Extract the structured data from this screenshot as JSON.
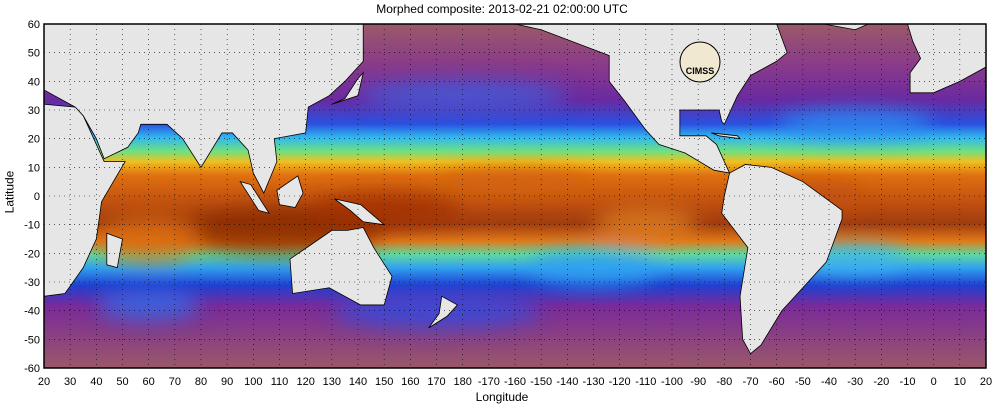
{
  "title": "Morphed composite: 2013-02-21 02:00:00 UTC",
  "xlabel": "Longitude",
  "ylabel": "Latitude",
  "x_ticks": [
    "20",
    "30",
    "40",
    "50",
    "60",
    "70",
    "80",
    "90",
    "100",
    "110",
    "120",
    "130",
    "140",
    "150",
    "160",
    "170",
    "180",
    "-170",
    "-160",
    "-150",
    "-140",
    "-130",
    "-120",
    "-110",
    "-100",
    "-90",
    "-80",
    "-70",
    "-60",
    "-50",
    "-40",
    "-30",
    "-20",
    "-10",
    "0",
    "10",
    "20"
  ],
  "y_ticks": [
    "60",
    "50",
    "40",
    "30",
    "20",
    "10",
    "0",
    "-10",
    "-20",
    "-30",
    "-40",
    "-50",
    "-60"
  ],
  "logo_text": "CIMSS",
  "colors": {
    "land": "#e6e6e6",
    "dry": "#8a4a7a",
    "moist": "#d06010",
    "mid": "#2a6ae0"
  }
}
